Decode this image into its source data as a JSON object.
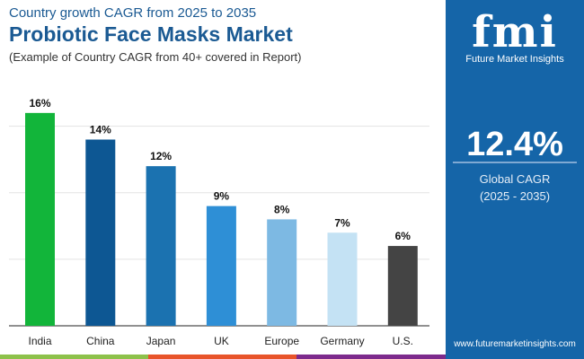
{
  "header": {
    "subtitle": "Country growth CAGR from 2025 to 2035",
    "title": "Probiotic Face Masks Market",
    "note": "(Example of Country CAGR from 40+ covered in Report)"
  },
  "panel": {
    "logo_text": "fmi",
    "logo_name": "Future Market Insights",
    "value": "12.4%",
    "label": "Global CAGR",
    "period": "(2025 - 2035)",
    "website": "www.futuremarketinsights.com",
    "background": "#1565a8"
  },
  "chart_data": {
    "type": "bar",
    "title": "Probiotic Face Masks Market",
    "categories": [
      "India",
      "China",
      "Japan",
      "UK",
      "Europe",
      "Germany",
      "U.S."
    ],
    "values": [
      16,
      14,
      12,
      9,
      8,
      7,
      6
    ],
    "labels": [
      "16%",
      "14%",
      "12%",
      "9%",
      "8%",
      "7%",
      "6%"
    ],
    "colors": [
      "#12b53a",
      "#0d5793",
      "#1b72b0",
      "#2e8fd6",
      "#7db9e3",
      "#c4e2f4",
      "#444444"
    ],
    "ylim": [
      0,
      16.8
    ],
    "grid": true
  }
}
